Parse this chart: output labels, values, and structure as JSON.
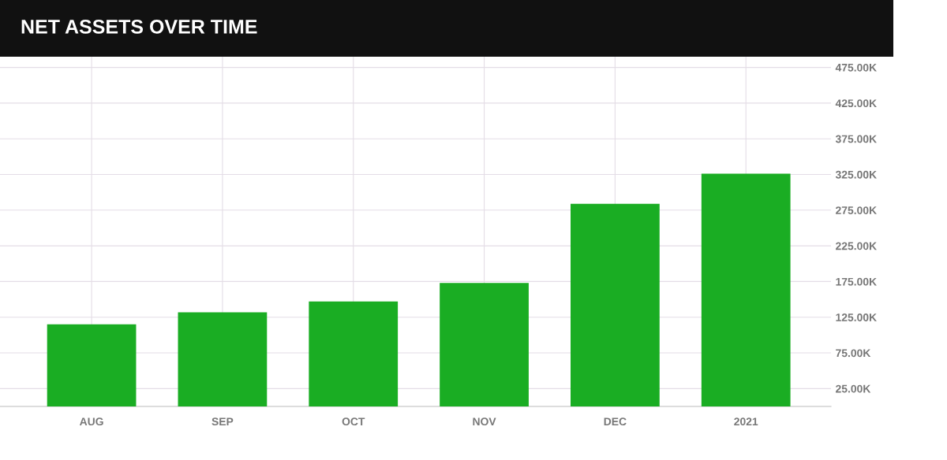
{
  "chart_data": {
    "type": "bar",
    "title": "NET ASSETS OVER TIME",
    "categories": [
      "AUG",
      "SEP",
      "OCT",
      "NOV",
      "DEC",
      "2021"
    ],
    "values": [
      115000,
      132000,
      147000,
      173000,
      284000,
      326000
    ],
    "color": "#1aad23",
    "ylim": [
      0,
      490000
    ],
    "yticks": [
      {
        "value": 25000,
        "label": "25.00K"
      },
      {
        "value": 75000,
        "label": "75.00K"
      },
      {
        "value": 125000,
        "label": "125.00K"
      },
      {
        "value": 175000,
        "label": "175.00K"
      },
      {
        "value": 225000,
        "label": "225.00K"
      },
      {
        "value": 275000,
        "label": "275.00K"
      },
      {
        "value": 325000,
        "label": "325.00K"
      },
      {
        "value": 375000,
        "label": "375.00K"
      },
      {
        "value": 425000,
        "label": "425.00K"
      },
      {
        "value": 475000,
        "label": "475.00K"
      }
    ],
    "grid": true
  }
}
